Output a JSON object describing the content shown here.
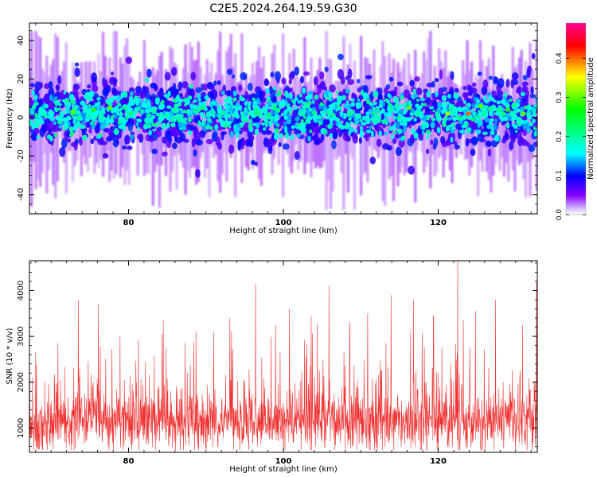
{
  "figure": {
    "title": "C2E5.2024.264.19.59.G30"
  },
  "chart_data": [
    {
      "type": "heatmap",
      "title": "C2E5.2024.264.19.59.G30",
      "xlabel": "Height of straight line (km)",
      "ylabel": "Frequency (Hz)",
      "xlim": [
        67.2,
        132.8
      ],
      "ylim": [
        -50,
        49
      ],
      "xticks": [
        80,
        100,
        120
      ],
      "yticks": [
        -40,
        -20,
        0,
        20,
        40
      ],
      "grid": false,
      "colorbar": {
        "label": "Normalized spectral amplitude",
        "range": [
          0.0,
          0.49
        ],
        "ticks": [
          0.0,
          0.1,
          0.2,
          0.3,
          0.4
        ],
        "colors": [
          "#ffffff",
          "#8a00ff",
          "#0000ff",
          "#00ffff",
          "#00ff00",
          "#ffff00",
          "#ff0000",
          "#ff00aa"
        ]
      },
      "description_band": {
        "core_frequency_range_hz": [
          -12,
          14
        ],
        "faint_extent_hz": [
          -48,
          45
        ],
        "peak_amplitude_points": [
          {
            "x": 72.8,
            "y": 3,
            "v": 0.3
          },
          {
            "x": 75.5,
            "y": 4,
            "v": 0.28
          },
          {
            "x": 77.6,
            "y": 5,
            "v": 0.3
          },
          {
            "x": 80.3,
            "y": 2,
            "v": 0.22
          },
          {
            "x": 96.5,
            "y": 4,
            "v": 0.2
          },
          {
            "x": 116.2,
            "y": 5,
            "v": 0.3
          },
          {
            "x": 121.2,
            "y": 2,
            "v": 0.32
          },
          {
            "x": 123.9,
            "y": 2,
            "v": 0.4
          },
          {
            "x": 125.5,
            "y": 6,
            "v": 0.3
          },
          {
            "x": 129.0,
            "y": 4,
            "v": 0.28
          },
          {
            "x": 131.0,
            "y": 2,
            "v": 0.3
          }
        ]
      }
    },
    {
      "type": "line",
      "xlabel": "Height of straight line (km)",
      "ylabel": "SNR (10 * v/v)",
      "xlim": [
        67.2,
        132.8
      ],
      "ylim": [
        470,
        4650
      ],
      "xticks": [
        80,
        100,
        120
      ],
      "yticks": [
        1000,
        2000,
        3000,
        4000
      ],
      "grid": false,
      "series_color": "#f03030",
      "approx_mean": 1150,
      "approx_range": [
        520,
        2400
      ],
      "spikes": [
        {
          "x": 68.0,
          "y": 2650
        },
        {
          "x": 70.9,
          "y": 2850
        },
        {
          "x": 73.5,
          "y": 3800
        },
        {
          "x": 76.1,
          "y": 3700
        },
        {
          "x": 78.9,
          "y": 3000
        },
        {
          "x": 84.5,
          "y": 3350
        },
        {
          "x": 88.7,
          "y": 3100
        },
        {
          "x": 91.0,
          "y": 3100
        },
        {
          "x": 93.1,
          "y": 3400
        },
        {
          "x": 96.4,
          "y": 4150
        },
        {
          "x": 99.0,
          "y": 3250
        },
        {
          "x": 100.8,
          "y": 3600
        },
        {
          "x": 103.6,
          "y": 3450
        },
        {
          "x": 105.9,
          "y": 4100
        },
        {
          "x": 108.6,
          "y": 3300
        },
        {
          "x": 110.9,
          "y": 3500
        },
        {
          "x": 113.9,
          "y": 3900
        },
        {
          "x": 116.8,
          "y": 3800
        },
        {
          "x": 119.4,
          "y": 3450
        },
        {
          "x": 122.5,
          "y": 4650
        },
        {
          "x": 124.8,
          "y": 3550
        },
        {
          "x": 127.4,
          "y": 3800
        },
        {
          "x": 130.9,
          "y": 3250
        },
        {
          "x": 132.7,
          "y": 4200
        }
      ]
    }
  ]
}
